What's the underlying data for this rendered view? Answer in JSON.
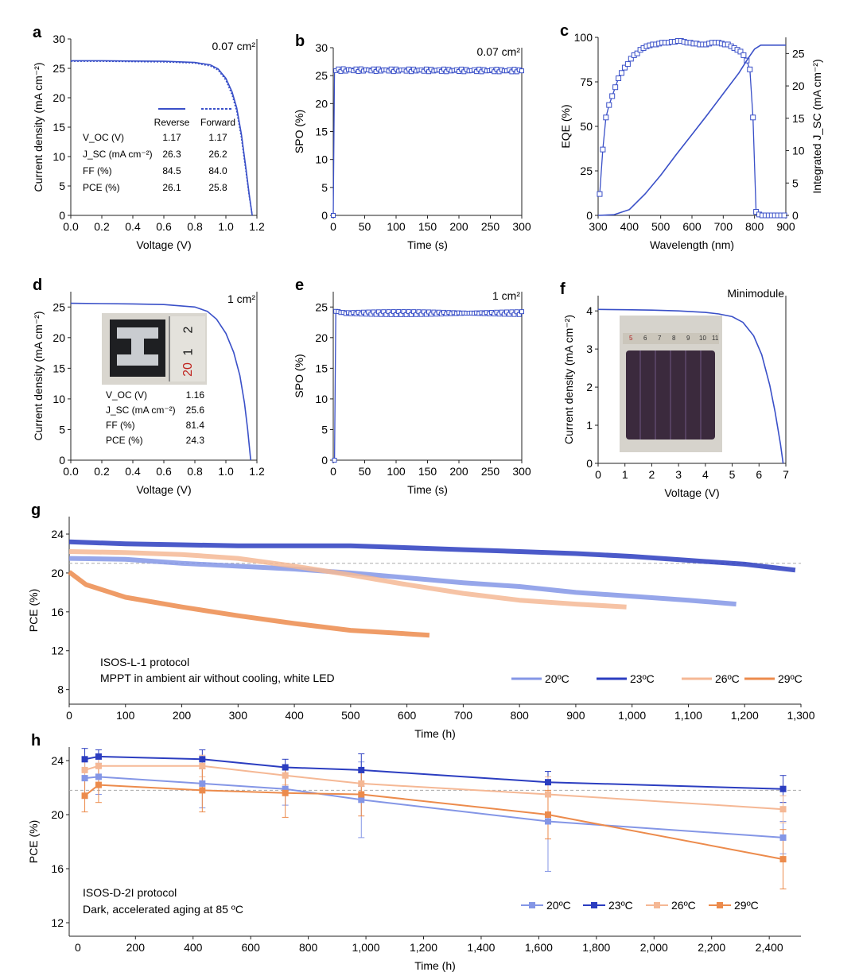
{
  "chart_data": [
    {
      "id": "a",
      "panel_label": "a",
      "type": "line",
      "annotation": "0.07 cm²",
      "xlabel": "Voltage (V)",
      "ylabel": "Current density (mA cm⁻²)",
      "xlim": [
        0,
        1.2
      ],
      "ylim": [
        0,
        30
      ],
      "xticks": [
        "0.0",
        "0.2",
        "0.4",
        "0.6",
        "0.8",
        "1.0",
        "1.2"
      ],
      "yticks": [
        "0",
        "5",
        "10",
        "15",
        "20",
        "25",
        "30"
      ],
      "series": [
        {
          "name": "Reverse",
          "color": "#3a50c8",
          "style": "solid",
          "x": [
            0,
            0.2,
            0.4,
            0.6,
            0.8,
            0.9,
            0.95,
            1.0,
            1.04,
            1.07,
            1.1,
            1.13,
            1.15,
            1.17
          ],
          "y": [
            26.3,
            26.3,
            26.25,
            26.2,
            26.0,
            25.6,
            24.9,
            23.3,
            21.0,
            18.3,
            13.8,
            7.8,
            3.6,
            0
          ]
        },
        {
          "name": "Forward",
          "color": "#3a50c8",
          "style": "dotted",
          "x": [
            0,
            0.2,
            0.4,
            0.6,
            0.8,
            0.9,
            0.95,
            1.0,
            1.04,
            1.07,
            1.1,
            1.13,
            1.15,
            1.17
          ],
          "y": [
            26.2,
            26.2,
            26.15,
            26.1,
            25.9,
            25.4,
            24.7,
            23.0,
            20.5,
            17.7,
            13.2,
            7.3,
            3.3,
            0
          ]
        }
      ],
      "table": {
        "columns": [
          "",
          "Reverse",
          "Forward"
        ],
        "rows": [
          {
            "label": "V_OC (V)",
            "values": [
              "1.17",
              "1.17"
            ]
          },
          {
            "label": "J_SC (mA cm⁻²)",
            "values": [
              "26.3",
              "26.2"
            ]
          },
          {
            "label": "FF (%)",
            "values": [
              "84.5",
              "84.0"
            ]
          },
          {
            "label": "PCE (%)",
            "values": [
              "26.1",
              "25.8"
            ]
          }
        ]
      }
    },
    {
      "id": "b",
      "panel_label": "b",
      "type": "line",
      "annotation": "0.07 cm²",
      "xlabel": "Time (s)",
      "ylabel": "SPO (%)",
      "xlim": [
        0,
        300
      ],
      "ylim": [
        0,
        30
      ],
      "xticks": [
        "0",
        "50",
        "100",
        "150",
        "200",
        "250",
        "300"
      ],
      "yticks": [
        "0",
        "5",
        "10",
        "15",
        "20",
        "25",
        "30"
      ],
      "series": [
        {
          "name": "",
          "color": "#3a50c8",
          "markers": "open-square",
          "x": [
            0,
            2,
            4,
            300
          ],
          "y": [
            0,
            26,
            26,
            25.9
          ]
        }
      ]
    },
    {
      "id": "c",
      "panel_label": "c",
      "type": "line",
      "xlabel": "Wavelength (nm)",
      "ylabel": "EQE (%)",
      "ylabel_right": "Integrated J_SC (mA cm⁻²)",
      "xlim": [
        300,
        900
      ],
      "ylim": [
        0,
        100
      ],
      "ylim_right": [
        0,
        27.5
      ],
      "xticks": [
        "300",
        "400",
        "500",
        "600",
        "700",
        "800",
        "900"
      ],
      "yticks": [
        "0",
        "25",
        "50",
        "75",
        "100"
      ],
      "yticks_right": [
        "0",
        "5",
        "10",
        "15",
        "20",
        "25"
      ],
      "series": [
        {
          "name": "EQE",
          "axis": "left",
          "color": "#3a50c8",
          "markers": "open-square",
          "x": [
            305,
            315,
            325,
            335,
            345,
            355,
            365,
            375,
            385,
            395,
            405,
            415,
            425,
            435,
            445,
            455,
            465,
            475,
            485,
            495,
            505,
            515,
            525,
            535,
            545,
            555,
            565,
            575,
            585,
            595,
            605,
            615,
            625,
            635,
            645,
            655,
            665,
            675,
            685,
            695,
            705,
            715,
            725,
            735,
            745,
            755,
            765,
            775,
            785,
            795,
            805,
            815,
            825,
            835,
            845,
            855,
            865,
            875,
            885,
            895
          ],
          "y": [
            12,
            37,
            55,
            62,
            67,
            72,
            77,
            80,
            83,
            85,
            88,
            90,
            91,
            93,
            94,
            95,
            95.5,
            96,
            96,
            96.5,
            97,
            97,
            97,
            97.5,
            97.5,
            98,
            98,
            97.5,
            97,
            97,
            96.5,
            96.5,
            96,
            96,
            96,
            96.5,
            97,
            97,
            97,
            96.5,
            96,
            96,
            95,
            94,
            93,
            92,
            90,
            87,
            82,
            55,
            2,
            0.5,
            0,
            0,
            0,
            0,
            0,
            0,
            0,
            0
          ]
        },
        {
          "name": "Integrated J_SC",
          "axis": "right",
          "color": "#3a50c8",
          "x": [
            300,
            350,
            400,
            450,
            500,
            550,
            600,
            650,
            700,
            750,
            780,
            800,
            820,
            900
          ],
          "y": [
            0,
            0.1,
            0.9,
            3.3,
            6.2,
            9.4,
            12.5,
            15.6,
            18.8,
            22.0,
            24.3,
            25.7,
            26.3,
            26.3
          ]
        }
      ]
    },
    {
      "id": "d",
      "panel_label": "d",
      "type": "line",
      "annotation": "1 cm²",
      "xlabel": "Voltage (V)",
      "ylabel": "Current density (mA cm⁻²)",
      "xlim": [
        0,
        1.2
      ],
      "ylim": [
        0,
        27.5
      ],
      "xticks": [
        "0.0",
        "0.2",
        "0.4",
        "0.6",
        "0.8",
        "1.0",
        "1.2"
      ],
      "yticks": [
        "0",
        "5",
        "10",
        "15",
        "20",
        "25"
      ],
      "series": [
        {
          "name": "",
          "color": "#3a50c8",
          "x": [
            0,
            0.2,
            0.4,
            0.6,
            0.8,
            0.88,
            0.94,
            1.0,
            1.05,
            1.09,
            1.12,
            1.14,
            1.16
          ],
          "y": [
            25.6,
            25.55,
            25.5,
            25.4,
            25.0,
            24.3,
            23.0,
            20.7,
            17.6,
            13.8,
            9.3,
            5.1,
            0
          ]
        }
      ],
      "table": {
        "rows": [
          {
            "label": "V_OC (V)",
            "value": "1.16"
          },
          {
            "label": "J_SC (mA cm⁻²)",
            "value": "25.6"
          },
          {
            "label": "FF (%)",
            "value": "81.4"
          },
          {
            "label": "PCE (%)",
            "value": "24.3"
          }
        ]
      },
      "inset_ruler_labels": [
        "2",
        "1",
        "20"
      ]
    },
    {
      "id": "e",
      "panel_label": "e",
      "type": "line",
      "annotation": "1 cm²",
      "xlabel": "Time (s)",
      "ylabel": "SPO (%)",
      "xlim": [
        0,
        300
      ],
      "ylim": [
        0,
        27.5
      ],
      "xticks": [
        "0",
        "50",
        "100",
        "150",
        "200",
        "250",
        "300"
      ],
      "yticks": [
        "0",
        "5",
        "10",
        "15",
        "20",
        "25"
      ],
      "series": [
        {
          "name": "",
          "color": "#3a50c8",
          "markers": "open-square",
          "x": [
            0,
            2,
            4,
            20,
            300
          ],
          "y": [
            0,
            0,
            24.3,
            24,
            24
          ]
        }
      ]
    },
    {
      "id": "f",
      "panel_label": "f",
      "type": "line",
      "annotation": "Minimodule",
      "xlabel": "Voltage (V)",
      "ylabel": "Current density (mA cm⁻²)",
      "xlim": [
        0,
        7
      ],
      "ylim": [
        0,
        4.4
      ],
      "xticks": [
        "0",
        "1",
        "2",
        "3",
        "4",
        "5",
        "6",
        "7"
      ],
      "yticks": [
        "0",
        "1",
        "2",
        "3",
        "4"
      ],
      "series": [
        {
          "name": "",
          "color": "#3a50c8",
          "x": [
            0,
            1,
            2,
            3,
            4,
            4.5,
            5,
            5.4,
            5.8,
            6.1,
            6.4,
            6.6,
            6.8,
            6.9
          ],
          "y": [
            4.04,
            4.03,
            4.02,
            4.0,
            3.96,
            3.92,
            3.85,
            3.7,
            3.35,
            2.85,
            2.05,
            1.35,
            0.5,
            0
          ]
        }
      ],
      "inset_ruler_labels": [
        "5",
        "6",
        "7",
        "8",
        "9",
        "10",
        "11"
      ]
    },
    {
      "id": "g",
      "panel_label": "g",
      "type": "line",
      "xlabel": "Time (h)",
      "ylabel": "PCE (%)",
      "xlim": [
        0,
        1300
      ],
      "ylim": [
        6.5,
        25.8
      ],
      "xticks": [
        "0",
        "100",
        "200",
        "300",
        "400",
        "500",
        "600",
        "700",
        "800",
        "900",
        "1,000",
        "1,100",
        "1,200",
        "1,300"
      ],
      "yticks": [
        "8",
        "12",
        "16",
        "20",
        "24"
      ],
      "reference_line_y": 21.0,
      "annotations": [
        "ISOS-L-1 protocol",
        "MPPT in ambient air without cooling, white LED"
      ],
      "legend_position": "bottom-right",
      "series": [
        {
          "name": "20ºC",
          "color": "#8496e6",
          "x": [
            0,
            100,
            200,
            300,
            400,
            500,
            600,
            700,
            800,
            900,
            1000,
            1100,
            1185
          ],
          "y": [
            21.5,
            21.4,
            21.0,
            20.7,
            20.4,
            20.0,
            19.5,
            19.0,
            18.6,
            18.0,
            17.6,
            17.2,
            16.8
          ]
        },
        {
          "name": "23ºC",
          "color": "#2b3dc0",
          "x": [
            0,
            100,
            200,
            300,
            400,
            500,
            600,
            700,
            800,
            900,
            1000,
            1100,
            1200,
            1290
          ],
          "y": [
            23.2,
            23.0,
            22.9,
            22.8,
            22.8,
            22.8,
            22.6,
            22.4,
            22.2,
            22.0,
            21.7,
            21.3,
            20.9,
            20.3
          ]
        },
        {
          "name": "26ºC",
          "color": "#f5b895",
          "x": [
            0,
            100,
            200,
            300,
            400,
            500,
            600,
            700,
            800,
            900,
            990
          ],
          "y": [
            22.2,
            22.1,
            21.9,
            21.5,
            20.7,
            19.8,
            18.8,
            17.9,
            17.2,
            16.8,
            16.5
          ]
        },
        {
          "name": "29ºC",
          "color": "#ec8b4c",
          "x": [
            0,
            30,
            100,
            200,
            300,
            400,
            500,
            640
          ],
          "y": [
            20.1,
            18.8,
            17.5,
            16.5,
            15.6,
            14.8,
            14.1,
            13.6
          ]
        }
      ]
    },
    {
      "id": "h",
      "panel_label": "h",
      "type": "line",
      "xlabel": "Time (h)",
      "ylabel": "PCE (%)",
      "xlim": [
        -30,
        2510
      ],
      "ylim": [
        11,
        25
      ],
      "xticks": [
        "200",
        "400",
        "600",
        "800",
        "1,000",
        "1,200",
        "1,400",
        "1,600",
        "1,800",
        "2,000",
        "2,200",
        "2,400"
      ],
      "xticks_values": [
        200,
        400,
        600,
        800,
        1000,
        1200,
        1400,
        1600,
        1800,
        2000,
        2200,
        2400
      ],
      "yticks": [
        "12",
        "16",
        "20",
        "24"
      ],
      "reference_line_y": 21.8,
      "annotations": [
        "ISOS-D-2I protocol",
        "Dark, accelerated aging at 85 ºC"
      ],
      "legend_position": "bottom-right",
      "series": [
        {
          "name": "20ºC",
          "color": "#8496e6",
          "x": [
            24,
            72,
            432,
            720,
            984,
            1632,
            2448
          ],
          "y": [
            22.7,
            22.8,
            22.3,
            21.9,
            21.1,
            19.5,
            18.3
          ],
          "err": [
            1.5,
            1.3,
            1.8,
            1.2,
            2.8,
            3.7,
            1.2
          ]
        },
        {
          "name": "23ºC",
          "color": "#2b3dc0",
          "x": [
            24,
            72,
            432,
            720,
            984,
            1632,
            2448
          ],
          "y": [
            24.1,
            24.3,
            24.1,
            23.5,
            23.3,
            22.4,
            21.9
          ],
          "err": [
            0.8,
            0.5,
            0.7,
            0.6,
            1.2,
            0.8,
            1.0
          ]
        },
        {
          "name": "26ºC",
          "color": "#f5b895",
          "x": [
            24,
            72,
            432,
            720,
            984,
            1632,
            2448
          ],
          "y": [
            23.3,
            23.6,
            23.6,
            22.9,
            22.3,
            21.5,
            20.4
          ],
          "err": [
            0.8,
            0.8,
            0.8,
            0.7,
            1.0,
            1.3,
            1.0
          ]
        },
        {
          "name": "29ºC",
          "color": "#ec8b4c",
          "x": [
            24,
            72,
            432,
            720,
            984,
            1632,
            2448
          ],
          "y": [
            21.4,
            22.2,
            21.8,
            21.6,
            21.5,
            20.0,
            16.7
          ],
          "err": [
            1.2,
            1.3,
            1.6,
            1.8,
            1.6,
            1.8,
            2.2
          ]
        }
      ]
    }
  ]
}
